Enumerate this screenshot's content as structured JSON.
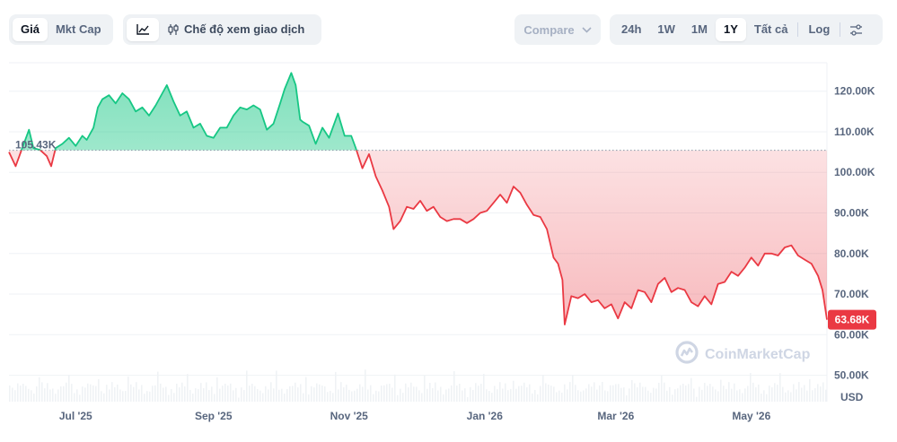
{
  "toolbar": {
    "type_tabs": [
      {
        "label": "Giá",
        "active": true
      },
      {
        "label": "Mkt Cap",
        "active": false
      }
    ],
    "view_line_icon": "line-chart-icon",
    "view_candle_label": "Chế độ xem giao dịch",
    "compare_label": "Compare",
    "ranges": [
      {
        "label": "24h",
        "active": false
      },
      {
        "label": "1W",
        "active": false
      },
      {
        "label": "1M",
        "active": false
      },
      {
        "label": "1Y",
        "active": true
      },
      {
        "label": "Tất cả",
        "active": false
      }
    ],
    "log_label": "Log",
    "settings_icon": "sliders-icon"
  },
  "watermark": "CoinMarketCap",
  "colors": {
    "up": "#16c784",
    "down": "#ea3943",
    "text_muted": "#58667e",
    "grid": "#eff2f5"
  },
  "chart_data": {
    "type": "area",
    "currency_label": "USD",
    "x_ticks": [
      "Jul '25",
      "Sep '25",
      "Nov '25",
      "Jan '26",
      "Mar '26",
      "May '26"
    ],
    "y_ticks": [
      "50.00K",
      "60.00K",
      "70.00K",
      "80.00K",
      "90.00K",
      "100.00K",
      "110.00K",
      "120.00K"
    ],
    "ylim": [
      43500,
      127000
    ],
    "baseline": {
      "value": 105430,
      "label": "105.43K"
    },
    "last_price": {
      "value": 63680,
      "label": "63.68K"
    },
    "grid": true,
    "series": [
      {
        "x": [
          "2025-06-01",
          "2025-06-04",
          "2025-06-08",
          "2025-06-10",
          "2025-06-12",
          "2025-06-15",
          "2025-06-18",
          "2025-06-20",
          "2025-06-22",
          "2025-06-25",
          "2025-06-28",
          "2025-07-01",
          "2025-07-04",
          "2025-07-06",
          "2025-07-09",
          "2025-07-11",
          "2025-07-13",
          "2025-07-16",
          "2025-07-19",
          "2025-07-22",
          "2025-07-25",
          "2025-07-28",
          "2025-07-31",
          "2025-08-03",
          "2025-08-06",
          "2025-08-09",
          "2025-08-11",
          "2025-08-14",
          "2025-08-17",
          "2025-08-20",
          "2025-08-23",
          "2025-08-26",
          "2025-08-29",
          "2025-09-01",
          "2025-09-04",
          "2025-09-07",
          "2025-09-10",
          "2025-09-13",
          "2025-09-16",
          "2025-09-19",
          "2025-09-22",
          "2025-09-25",
          "2025-09-28",
          "2025-10-01",
          "2025-10-03",
          "2025-10-06",
          "2025-10-08",
          "2025-10-10",
          "2025-10-11",
          "2025-10-14",
          "2025-10-17",
          "2025-10-20",
          "2025-10-23",
          "2025-10-27",
          "2025-10-30",
          "2025-11-02",
          "2025-11-04",
          "2025-11-07",
          "2025-11-10",
          "2025-11-13",
          "2025-11-16",
          "2025-11-19",
          "2025-11-21",
          "2025-11-24",
          "2025-11-27",
          "2025-11-30",
          "2025-12-03",
          "2025-12-06",
          "2025-12-09",
          "2025-12-12",
          "2025-12-15",
          "2025-12-18",
          "2025-12-21",
          "2025-12-24",
          "2025-12-27",
          "2025-12-30",
          "2026-01-02",
          "2026-01-05",
          "2026-01-08",
          "2026-01-11",
          "2026-01-14",
          "2026-01-17",
          "2026-01-20",
          "2026-01-23",
          "2026-01-26",
          "2026-01-29",
          "2026-02-01",
          "2026-02-03",
          "2026-02-05",
          "2026-02-06",
          "2026-02-09",
          "2026-02-12",
          "2026-02-15",
          "2026-02-18",
          "2026-02-21",
          "2026-02-24",
          "2026-02-27",
          "2026-03-02",
          "2026-03-05",
          "2026-03-08",
          "2026-03-11",
          "2026-03-14",
          "2026-03-17",
          "2026-03-20",
          "2026-03-23",
          "2026-03-26",
          "2026-03-29",
          "2026-04-01",
          "2026-04-04",
          "2026-04-07",
          "2026-04-10",
          "2026-04-13",
          "2026-04-16",
          "2026-04-19",
          "2026-04-22",
          "2026-04-25",
          "2026-04-28",
          "2026-05-01",
          "2026-05-04",
          "2026-05-07",
          "2026-05-10",
          "2026-05-13",
          "2026-05-16",
          "2026-05-19",
          "2026-05-22",
          "2026-05-25",
          "2026-05-28",
          "2026-05-31",
          "2026-06-02",
          "2026-06-04"
        ],
        "y": [
          105000,
          101500,
          107500,
          110500,
          106000,
          105500,
          104000,
          101500,
          106000,
          107000,
          108500,
          106500,
          109000,
          108000,
          111000,
          116000,
          118000,
          119000,
          117000,
          119500,
          118000,
          115000,
          116000,
          114000,
          116500,
          119500,
          121500,
          117500,
          114000,
          115000,
          111000,
          112000,
          109000,
          108500,
          111000,
          111000,
          114000,
          116000,
          115500,
          116500,
          115500,
          110500,
          112000,
          117000,
          120500,
          124500,
          121500,
          113000,
          112500,
          111500,
          107000,
          111000,
          108500,
          114500,
          109000,
          109000,
          106000,
          101000,
          104500,
          99000,
          95500,
          91500,
          86000,
          88000,
          91500,
          91000,
          93000,
          90500,
          91500,
          89000,
          88000,
          88500,
          88500,
          87500,
          88500,
          90000,
          90500,
          92500,
          94500,
          92500,
          96500,
          95000,
          92000,
          89500,
          89000,
          86000,
          79000,
          77500,
          73500,
          62500,
          69500,
          69000,
          70000,
          68000,
          68500,
          66500,
          67500,
          64000,
          68000,
          66500,
          71000,
          70500,
          68000,
          72500,
          74000,
          70500,
          71500,
          71000,
          68000,
          67000,
          69500,
          67500,
          72500,
          73000,
          75500,
          74500,
          76500,
          79000,
          77000,
          80000,
          80000,
          79500,
          81500,
          82000,
          79500,
          78500,
          77500,
          74500,
          71000,
          63680
        ]
      }
    ]
  }
}
